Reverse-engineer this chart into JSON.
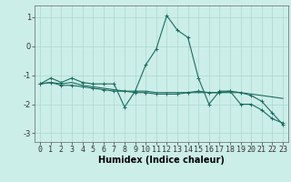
{
  "xlabel": "Humidex (Indice chaleur)",
  "background_color": "#cceee8",
  "line_color": "#1a6b60",
  "grid_color": "#aad8d0",
  "xlim": [
    -0.5,
    23.5
  ],
  "ylim": [
    -3.3,
    1.4
  ],
  "yticks": [
    -3,
    -2,
    -1,
    0,
    1
  ],
  "xticks": [
    0,
    1,
    2,
    3,
    4,
    5,
    6,
    7,
    8,
    9,
    10,
    11,
    12,
    13,
    14,
    15,
    16,
    17,
    18,
    19,
    20,
    21,
    22,
    23
  ],
  "line1_x": [
    0,
    1,
    2,
    3,
    4,
    5,
    6,
    7,
    8,
    9,
    10,
    11,
    12,
    13,
    14,
    15,
    16,
    17,
    18,
    19,
    20,
    21,
    22,
    23
  ],
  "line1_y": [
    -1.3,
    -1.1,
    -1.25,
    -1.1,
    -1.25,
    -1.3,
    -1.3,
    -1.3,
    -2.1,
    -1.55,
    -0.65,
    -0.1,
    1.05,
    0.55,
    0.3,
    -1.1,
    -2.0,
    -1.55,
    -1.55,
    -2.0,
    -2.0,
    -2.2,
    -2.5,
    -2.65
  ],
  "line2_x": [
    0,
    1,
    2,
    3,
    4,
    5,
    6,
    7,
    8,
    9,
    10,
    11,
    12,
    13,
    14,
    15,
    16,
    17,
    18,
    19,
    20,
    21,
    22,
    23
  ],
  "line2_y": [
    -1.3,
    -1.25,
    -1.35,
    -1.35,
    -1.4,
    -1.45,
    -1.5,
    -1.55,
    -1.55,
    -1.6,
    -1.6,
    -1.65,
    -1.65,
    -1.65,
    -1.6,
    -1.55,
    -1.6,
    -1.6,
    -1.55,
    -1.6,
    -1.7,
    -1.9,
    -2.3,
    -2.7
  ],
  "line3_x": [
    0,
    1,
    2,
    3,
    4,
    5,
    6,
    7,
    8,
    9,
    10,
    11,
    12,
    13,
    14,
    15,
    16,
    17,
    18,
    19,
    20,
    21,
    22,
    23
  ],
  "line3_y": [
    -1.3,
    -1.25,
    -1.3,
    -1.25,
    -1.35,
    -1.4,
    -1.45,
    -1.5,
    -1.55,
    -1.55,
    -1.55,
    -1.6,
    -1.6,
    -1.6,
    -1.6,
    -1.6,
    -1.6,
    -1.6,
    -1.6,
    -1.6,
    -1.65,
    -1.7,
    -1.75,
    -1.8
  ],
  "tick_fontsize": 6,
  "xlabel_fontsize": 7,
  "ylabel_fontsize": 7
}
